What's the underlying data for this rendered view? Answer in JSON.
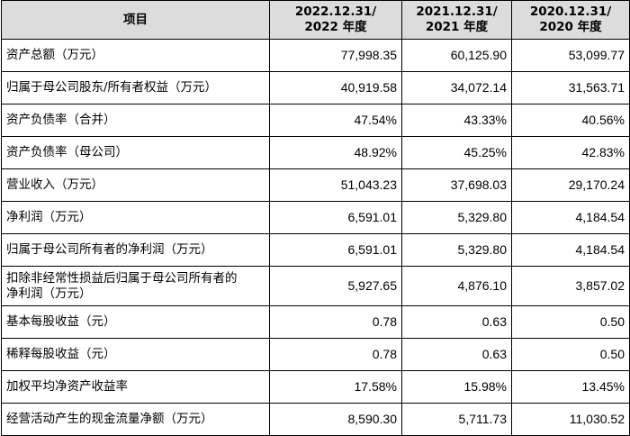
{
  "table": {
    "headers": [
      "项目",
      "2022.12.31/\n2022 年度",
      "2021.12.31/\n2021 年度",
      "2020.12.31/\n2020 年度"
    ],
    "header_lines": [
      [
        "项目"
      ],
      [
        "2022.12.31/",
        "2022 年度"
      ],
      [
        "2021.12.31/",
        "2021 年度"
      ],
      [
        "2020.12.31/",
        "2020 年度"
      ]
    ],
    "rows": [
      {
        "label": [
          "资产总额（万元）"
        ],
        "values": [
          "77,998.35",
          "60,125.90",
          "53,099.77"
        ]
      },
      {
        "label": [
          "归属于母公司股东/所有者权益（万元）"
        ],
        "values": [
          "40,919.58",
          "34,072.14",
          "31,563.71"
        ]
      },
      {
        "label": [
          "资产负债率（合并）"
        ],
        "values": [
          "47.54%",
          "43.33%",
          "40.56%"
        ]
      },
      {
        "label": [
          "资产负债率（母公司）"
        ],
        "values": [
          "48.92%",
          "45.25%",
          "42.83%"
        ]
      },
      {
        "label": [
          "营业收入（万元）"
        ],
        "values": [
          "51,043.23",
          "37,698.03",
          "29,170.24"
        ]
      },
      {
        "label": [
          "净利润（万元）"
        ],
        "values": [
          "6,591.01",
          "5,329.80",
          "4,184.54"
        ]
      },
      {
        "label": [
          "归属于母公司所有者的净利润（万元）"
        ],
        "values": [
          "6,591.01",
          "5,329.80",
          "4,184.54"
        ]
      },
      {
        "label": [
          "扣除非经常性损益后归属于母公司所有者的",
          "净利润（万元）"
        ],
        "values": [
          "5,927.65",
          "4,876.10",
          "3,857.02"
        ]
      },
      {
        "label": [
          "基本每股收益（元）"
        ],
        "values": [
          "0.78",
          "0.63",
          "0.50"
        ]
      },
      {
        "label": [
          "稀释每股收益（元）"
        ],
        "values": [
          "0.78",
          "0.63",
          "0.50"
        ]
      },
      {
        "label": [
          "加权平均净资产收益率"
        ],
        "values": [
          "17.58%",
          "15.98%",
          "13.45%"
        ]
      },
      {
        "label": [
          "经营活动产生的现金流量净额（万元）"
        ],
        "values": [
          "8,590.30",
          "5,711.73",
          "11,030.52"
        ]
      }
    ]
  }
}
